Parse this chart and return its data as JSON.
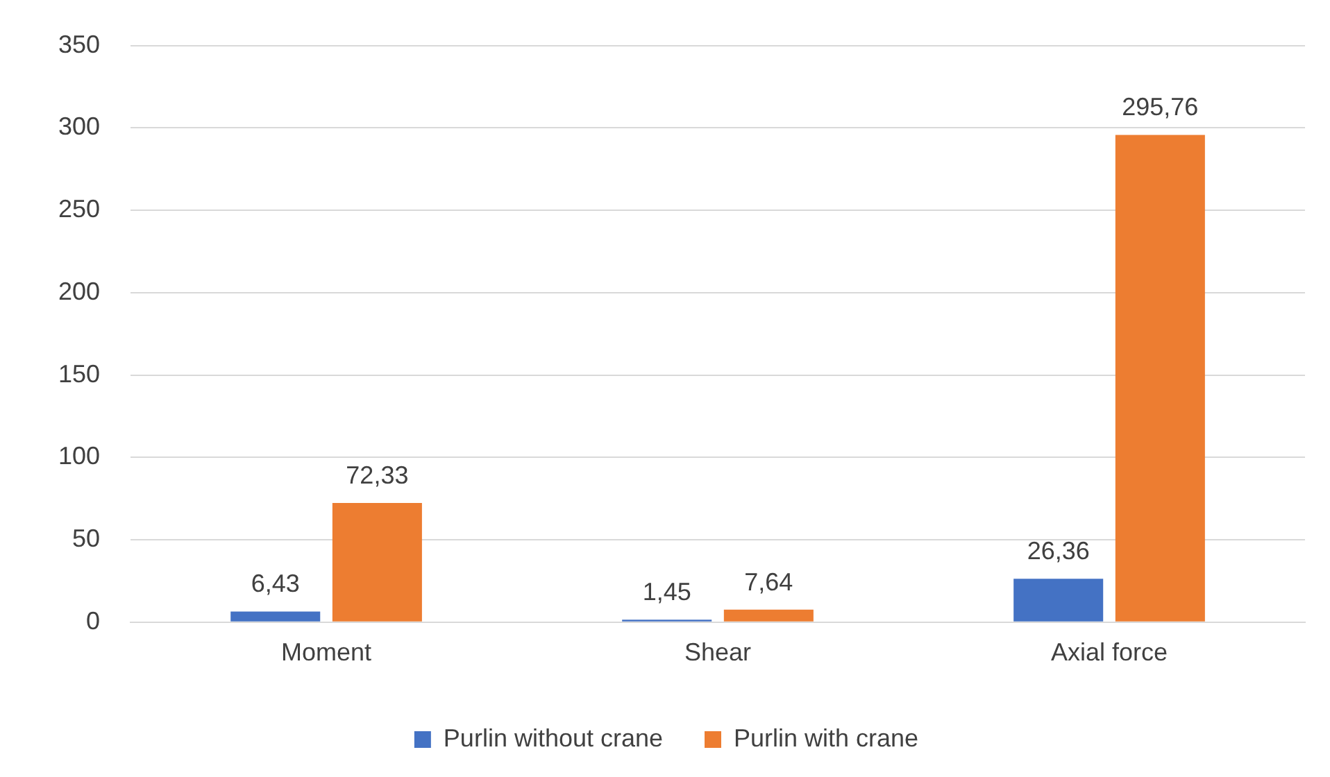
{
  "chart_data": {
    "type": "bar",
    "categories": [
      "Moment",
      "Shear",
      "Axial force"
    ],
    "series": [
      {
        "name": "Purlin without crane",
        "color": "#4472c4",
        "values": [
          6.43,
          1.45,
          26.36
        ],
        "value_labels": [
          "6,43",
          "1,45",
          "26,36"
        ]
      },
      {
        "name": "Purlin with crane",
        "color": "#ed7d31",
        "values": [
          72.33,
          7.64,
          295.76
        ],
        "value_labels": [
          "72,33",
          "7,64",
          "295,76"
        ]
      }
    ],
    "ylim": [
      0,
      350
    ],
    "yticks": [
      0,
      50,
      100,
      150,
      200,
      250,
      300,
      350
    ],
    "grid": "y",
    "legend": "bottom"
  }
}
